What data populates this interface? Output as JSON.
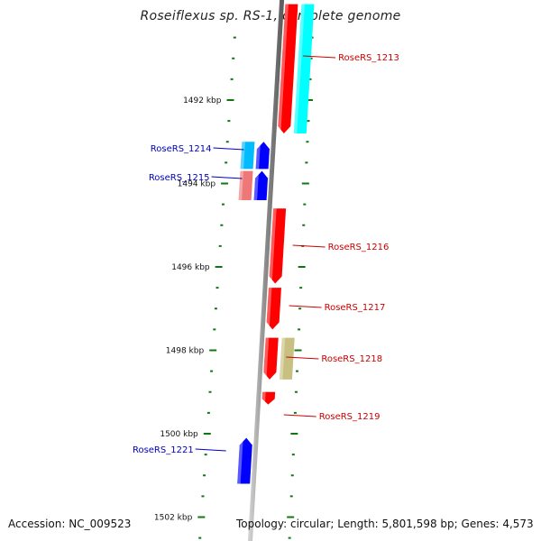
{
  "title": "Roseiflexus sp. RS-1, complete genome",
  "footer": {
    "accession_label": "Accession:",
    "accession": "NC_009523",
    "topology_label": "Topology:",
    "topology": "circular",
    "length_label": "Length:",
    "length": "5,801,598 bp",
    "genes_label": "Genes:",
    "genes": "4,573"
  },
  "colors": {
    "forward_label": "#cc0000",
    "reverse_label": "#0000bb",
    "cds": "#ff0000",
    "cds_reverse": "#0000ff",
    "rna_forward": "#00ffff",
    "rna_reverse": "#00bbff",
    "pseudo": "#ee7777",
    "other": "#c8c080",
    "tick": "#117711",
    "backbone": "#888888"
  },
  "scale": {
    "unit": "kbp",
    "labels": [
      "1492 kbp",
      "1494 kbp",
      "1496 kbp",
      "1498 kbp",
      "1500 kbp",
      "1502 kbp"
    ]
  },
  "genes": [
    {
      "id": "g1213-outer",
      "label": "",
      "strand": "forward",
      "lane": 2,
      "type": "rna_forward",
      "start_kbp": 1489.7,
      "end_kbp": 1492.8
    },
    {
      "id": "g1213",
      "label": "RoseRS_1213",
      "strand": "forward",
      "lane": 1,
      "type": "cds",
      "start_kbp": 1489.7,
      "end_kbp": 1492.8
    },
    {
      "id": "g1214-rna",
      "label": "",
      "strand": "reverse",
      "lane": 2,
      "type": "rna_reverse",
      "start_kbp": 1493.0,
      "end_kbp": 1493.65
    },
    {
      "id": "g1214",
      "label": "RoseRS_1214",
      "strand": "reverse",
      "lane": 1,
      "type": "cds_reverse",
      "start_kbp": 1493.0,
      "end_kbp": 1493.65
    },
    {
      "id": "g1215-pseudo",
      "label": "",
      "strand": "reverse",
      "lane": 2,
      "type": "pseudo",
      "start_kbp": 1493.7,
      "end_kbp": 1494.4
    },
    {
      "id": "g1215",
      "label": "RoseRS_1215",
      "strand": "reverse",
      "lane": 1,
      "type": "cds_reverse",
      "start_kbp": 1493.7,
      "end_kbp": 1494.4
    },
    {
      "id": "g1216",
      "label": "RoseRS_1216",
      "strand": "forward",
      "lane": 1,
      "type": "cds",
      "start_kbp": 1494.6,
      "end_kbp": 1496.4
    },
    {
      "id": "g1217",
      "label": "RoseRS_1217",
      "strand": "forward",
      "lane": 1,
      "type": "cds",
      "start_kbp": 1496.5,
      "end_kbp": 1497.5
    },
    {
      "id": "g1218",
      "label": "RoseRS_1218",
      "strand": "forward",
      "lane": 1,
      "type": "cds",
      "start_kbp": 1497.7,
      "end_kbp": 1498.7
    },
    {
      "id": "g1218-other",
      "label": "",
      "strand": "forward",
      "lane": 2,
      "type": "other",
      "start_kbp": 1497.7,
      "end_kbp": 1498.7
    },
    {
      "id": "g1219",
      "label": "RoseRS_1219",
      "strand": "forward",
      "lane": 1,
      "type": "cds",
      "start_kbp": 1499.0,
      "end_kbp": 1499.3
    },
    {
      "id": "g1221",
      "label": "RoseRS_1221",
      "strand": "reverse",
      "lane": 1,
      "type": "cds_reverse",
      "start_kbp": 1500.1,
      "end_kbp": 1501.2
    }
  ]
}
